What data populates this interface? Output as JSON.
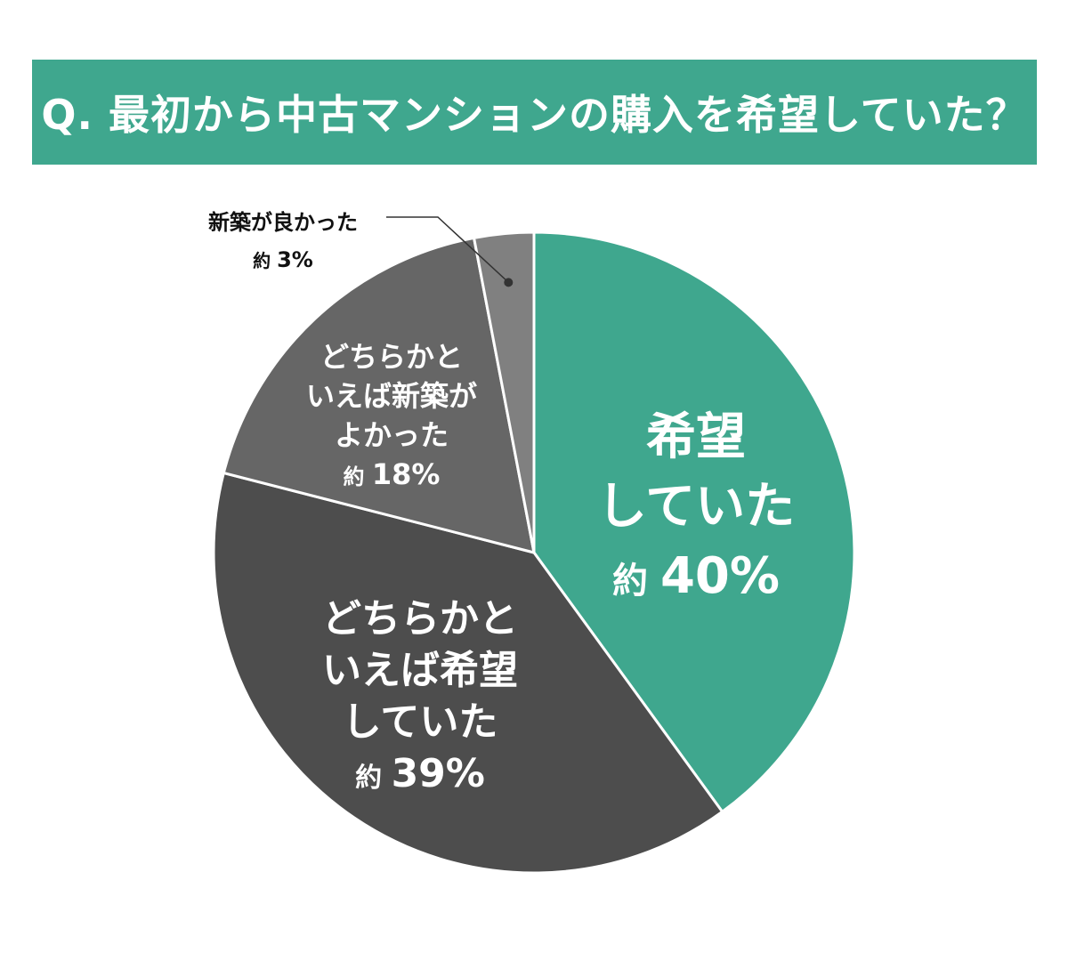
{
  "title": "Q. 最初から中古マンションの購入を希望していた？",
  "chart_data": {
    "type": "pie",
    "title": "Q. 最初から中古マンションの購入を希望していた？",
    "slices": [
      {
        "label_lines": [
          "希望",
          "していた"
        ],
        "percent_prefix": "約",
        "percent_text": "40%",
        "value": 40,
        "color": "#3fa78e"
      },
      {
        "label_lines": [
          "どちらかと",
          "いえば希望",
          "していた"
        ],
        "percent_prefix": "約",
        "percent_text": "39%",
        "value": 39,
        "color": "#4d4d4d"
      },
      {
        "label_lines": [
          "どちらかと",
          "いえば新築が",
          "よかった"
        ],
        "percent_prefix": "約",
        "percent_text": "18%",
        "value": 18,
        "color": "#666666"
      },
      {
        "label_lines": [
          "新築が良かった"
        ],
        "percent_prefix": "約",
        "percent_text": "3%",
        "value": 3,
        "color": "#808080"
      }
    ]
  }
}
